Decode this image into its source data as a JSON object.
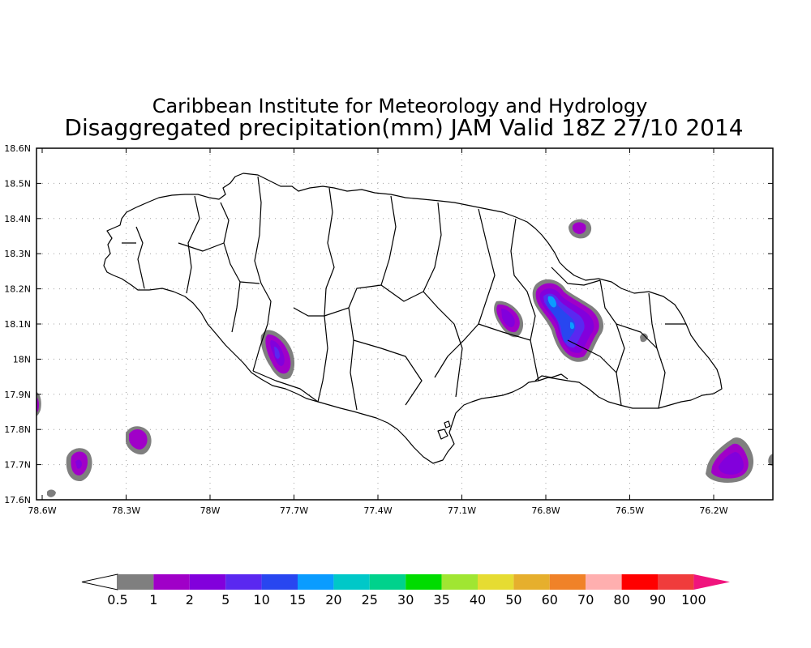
{
  "title": {
    "line1": "Caribbean Institute for Meteorology and Hydrology",
    "line2": "Disaggregated precipitation(mm) JAM Valid 18Z 27/10 2014"
  },
  "axes": {
    "y_ticks": [
      "18.6N",
      "18.5N",
      "18.4N",
      "18.3N",
      "18.2N",
      "18.1N",
      "18N",
      "17.9N",
      "17.8N",
      "17.7N",
      "17.6N"
    ],
    "x_ticks": [
      "78.6W",
      "78.3W",
      "78W",
      "77.7W",
      "77.4W",
      "77.1W",
      "76.8W",
      "76.5W",
      "76.2W"
    ]
  },
  "colorbar": {
    "labels": [
      "0.5",
      "1",
      "2",
      "5",
      "10",
      "15",
      "20",
      "25",
      "30",
      "35",
      "40",
      "50",
      "60",
      "70",
      "80",
      "90",
      "100"
    ],
    "colors": [
      "#7f7f7f",
      "#a000c8",
      "#8200dc",
      "#5a28f0",
      "#2846f0",
      "#0a9cff",
      "#00c8c8",
      "#00d28c",
      "#00dc00",
      "#a0e632",
      "#e6dc32",
      "#e6af2d",
      "#f08228",
      "#ffafaf",
      "#ff0000",
      "#f03c3c"
    ],
    "under_color": "#ffffff",
    "over_color": "#f0147d"
  },
  "map": {
    "region": "Jamaica",
    "land_fill": "#ffffff",
    "coast_color": "#000000"
  },
  "colors": {
    "rain_light": "#7f7f7f",
    "rain_1": "#a000c8",
    "rain_2": "#8200dc",
    "rain_5": "#5a28f0",
    "rain_10": "#2846f0",
    "rain_15": "#0a9cff"
  }
}
